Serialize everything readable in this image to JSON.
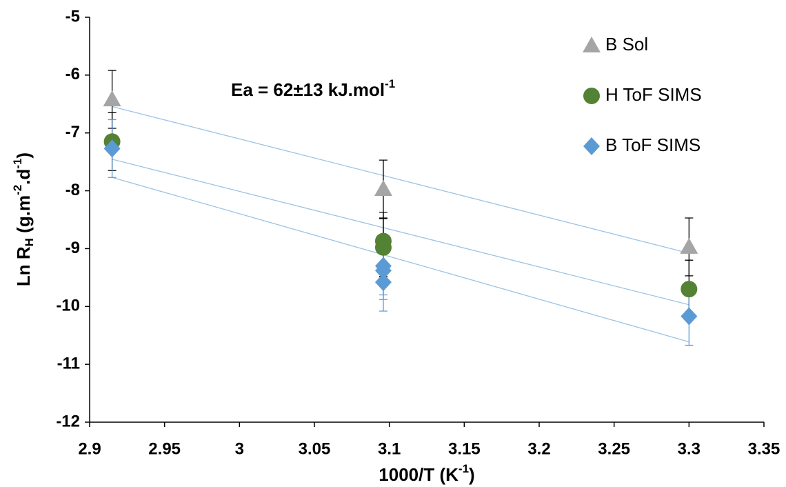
{
  "chart_data": {
    "type": "scatter",
    "x_label": {
      "text": "1000/T (K",
      "sup": "-1",
      "tail": ")"
    },
    "y_label": {
      "main": "Ln R",
      "sub": "H",
      "unit_a": " (g.m",
      "sup_a": "-2",
      "unit_b": ".d",
      "sup_b": "-1",
      "tail": ")"
    },
    "annotation": {
      "text": "Ea = 62±13 kJ.mol",
      "sup": "-1"
    },
    "xlim": [
      2.9,
      3.35
    ],
    "xticks": [
      2.9,
      2.95,
      3,
      3.05,
      3.1,
      3.15,
      3.2,
      3.25,
      3.3,
      3.35
    ],
    "ylim": [
      -12,
      -5
    ],
    "yticks": [
      -12,
      -11,
      -10,
      -9,
      -8,
      -7,
      -6,
      -5
    ],
    "grid": false,
    "legend": "upper right",
    "trendline": true,
    "trendline_color": "#9dc3e6",
    "series": [
      {
        "name": "B Sol",
        "color": "#a5a5a5",
        "marker": "triangle",
        "error_color": "#000000",
        "x": [
          2.915,
          3.096,
          3.3
        ],
        "values": [
          -6.42,
          -7.97,
          -8.97
        ],
        "errors": [
          0.5,
          0.5,
          0.5
        ]
      },
      {
        "name": "H ToF SIMS",
        "color": "#548235",
        "marker": "circle",
        "error_color": "#000000",
        "x": [
          2.915,
          3.096,
          3.096,
          3.3
        ],
        "values": [
          -7.15,
          -8.87,
          -8.98,
          -9.7
        ],
        "errors": [
          0.5,
          0.5,
          0.5,
          0.5
        ]
      },
      {
        "name": "B ToF SIMS",
        "color": "#5b9bd5",
        "marker": "diamond",
        "error_color": "#5b9bd5",
        "x": [
          2.915,
          3.096,
          3.096,
          3.096,
          3.3
        ],
        "values": [
          -7.27,
          -9.3,
          -9.38,
          -9.58,
          -10.17
        ],
        "errors": [
          0.5,
          0.5,
          0.5,
          0.5,
          0.5
        ]
      }
    ]
  }
}
